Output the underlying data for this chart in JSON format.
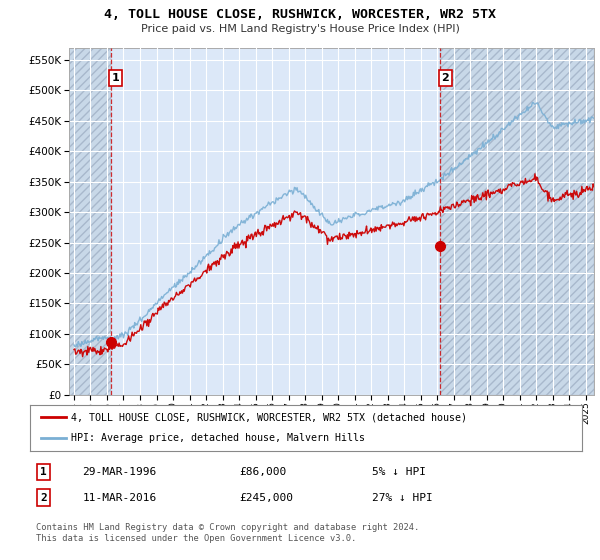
{
  "title": "4, TOLL HOUSE CLOSE, RUSHWICK, WORCESTER, WR2 5TX",
  "subtitle": "Price paid vs. HM Land Registry's House Price Index (HPI)",
  "ylabel_ticks": [
    0,
    50000,
    100000,
    150000,
    200000,
    250000,
    300000,
    350000,
    400000,
    450000,
    500000,
    550000
  ],
  "ylim": [
    0,
    570000
  ],
  "xlim_start": 1993.7,
  "xlim_end": 2025.5,
  "sale1_date": 1996.23,
  "sale1_price": 86000,
  "sale2_date": 2016.19,
  "sale2_price": 245000,
  "legend_line1": "4, TOLL HOUSE CLOSE, RUSHWICK, WORCESTER, WR2 5TX (detached house)",
  "legend_line2": "HPI: Average price, detached house, Malvern Hills",
  "annotation1_label": "1",
  "annotation1_date": "29-MAR-1996",
  "annotation1_price": "£86,000",
  "annotation1_hpi": "5% ↓ HPI",
  "annotation2_label": "2",
  "annotation2_date": "11-MAR-2016",
  "annotation2_price": "£245,000",
  "annotation2_hpi": "27% ↓ HPI",
  "footnote": "Contains HM Land Registry data © Crown copyright and database right 2024.\nThis data is licensed under the Open Government Licence v3.0.",
  "line_color_red": "#cc0000",
  "line_color_blue": "#7aafd4",
  "plot_bg": "#dce8f8",
  "hatch_color": "#b8c8dc"
}
